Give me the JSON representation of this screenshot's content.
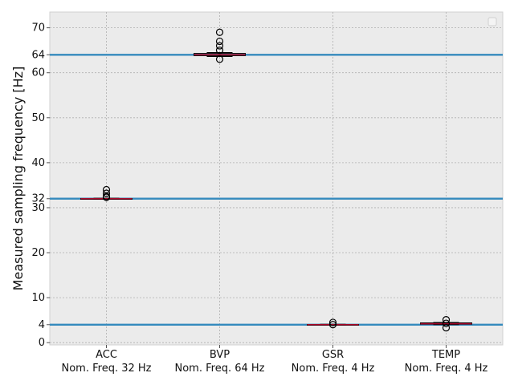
{
  "chart_data": {
    "type": "box",
    "title": "",
    "xlabel": "",
    "ylabel": "Measured sampling frequency [Hz]",
    "ylim": [
      -0.5,
      73.5
    ],
    "yticks": [
      0,
      4,
      10,
      20,
      30,
      32,
      40,
      50,
      60,
      64,
      70
    ],
    "grid": true,
    "legend": "top-right (empty)",
    "colors": {
      "background": "#ebebeb",
      "grid": "#b0b0b0",
      "reference_line": "#348abd",
      "median": "#a60628",
      "box": "#000000",
      "flier": "#000000"
    },
    "categories": [
      {
        "name": "ACC",
        "sub": "Nom. Freq. 32 Hz"
      },
      {
        "name": "BVP",
        "sub": "Nom. Freq. 64 Hz"
      },
      {
        "name": "GSR",
        "sub": "Nom. Freq. 4 Hz"
      },
      {
        "name": "TEMP",
        "sub": "Nom. Freq. 4 Hz"
      }
    ],
    "series": [
      {
        "category": "ACC",
        "median": 32.0,
        "q1": 31.95,
        "q3": 32.05,
        "whisker_low": 31.9,
        "whisker_high": 32.1,
        "fliers": [
          32.3,
          32.5,
          33.2,
          34.0
        ]
      },
      {
        "category": "BVP",
        "median": 64.0,
        "q1": 63.8,
        "q3": 64.3,
        "whisker_low": 63.6,
        "whisker_high": 64.5,
        "fliers": [
          63.0,
          65.0,
          66.0,
          67.0,
          69.0
        ]
      },
      {
        "category": "GSR",
        "median": 4.0,
        "q1": 3.95,
        "q3": 4.05,
        "whisker_low": 3.9,
        "whisker_high": 4.1,
        "fliers": [
          4.0,
          4.5
        ]
      },
      {
        "category": "TEMP",
        "median": 4.2,
        "q1": 4.1,
        "q3": 4.4,
        "whisker_low": 4.0,
        "whisker_high": 4.5,
        "fliers": [
          3.3,
          4.3,
          5.1
        ]
      }
    ],
    "reference_lines": [
      4,
      32,
      64
    ]
  }
}
